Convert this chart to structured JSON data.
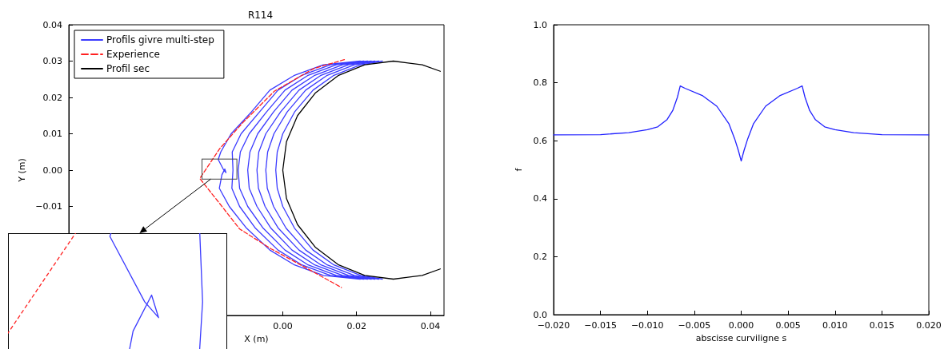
{
  "chart_data": [
    {
      "type": "line",
      "title": "R114",
      "xlabel": "X (m)",
      "ylabel": "Y (m)",
      "xlim": [
        -0.058,
        0.0437
      ],
      "ylim": [
        -0.04,
        0.04
      ],
      "xticks": [
        {
          "value": 0,
          "label": "0.00"
        },
        {
          "value": 0.02,
          "label": "0.02"
        },
        {
          "value": 0.04,
          "label": "0.04"
        }
      ],
      "yticks": [
        {
          "value": -0.01,
          "label": "−0.01"
        },
        {
          "value": 0,
          "label": "0.00"
        },
        {
          "value": 0.01,
          "label": "0.01"
        },
        {
          "value": 0.02,
          "label": "0.02"
        },
        {
          "value": 0.03,
          "label": "0.03"
        },
        {
          "value": 0.04,
          "label": "0.04"
        }
      ],
      "legend": "top left",
      "series": [
        {
          "name": "Profils givre multi-step",
          "color": "#3a3aff",
          "x": [
            0.021,
            0.011,
            0.003,
            -0.0035,
            -0.0085,
            -0.014,
            -0.0168,
            -0.0175,
            -0.016,
            -0.0154,
            -0.0157,
            -0.0165,
            -0.0172,
            -0.0145,
            -0.0098,
            -0.0035,
            0.003,
            0.011,
            0.021
          ],
          "values": [
            0.03,
            0.029,
            0.026,
            0.022,
            0.016,
            0.01,
            0.005,
            0.0029,
            0,
            -0.0007,
            0.0003,
            -0.0013,
            -0.005,
            -0.01,
            -0.016,
            -0.022,
            -0.026,
            -0.029,
            -0.03
          ]
        },
        {
          "color": "#3a3aff",
          "x": [
            0.022,
            0.0129,
            0.005,
            -0.0013,
            -0.0063,
            -0.0113,
            -0.0137,
            -0.0135,
            -0.0138,
            -0.0117,
            -0.0074,
            -0.0013,
            0.005,
            0.0129,
            0.022
          ],
          "values": [
            0.03,
            0.029,
            0.026,
            0.022,
            0.016,
            0.01,
            0.005,
            0,
            -0.005,
            -0.01,
            -0.016,
            -0.022,
            -0.026,
            -0.029,
            -0.03
          ]
        },
        {
          "color": "#3a3aff",
          "x": [
            0.023,
            0.0145,
            0.0067,
            0.0006,
            -0.0044,
            -0.0091,
            -0.0115,
            -0.0121,
            -0.0117,
            -0.0095,
            -0.0053,
            0.0006,
            0.0067,
            0.0145,
            0.023
          ],
          "values": [
            0.03,
            0.029,
            0.026,
            0.022,
            0.016,
            0.01,
            0.005,
            0,
            -0.005,
            -0.01,
            -0.016,
            -0.022,
            -0.026,
            -0.029,
            -0.03
          ]
        },
        {
          "color": "#3a3aff",
          "x": [
            0.024,
            0.0162,
            0.0085,
            0.0025,
            -0.0025,
            -0.0068,
            -0.0089,
            -0.0095,
            -0.0091,
            -0.007,
            -0.0032,
            0.0025,
            0.0085,
            0.0162,
            0.024
          ],
          "values": [
            0.03,
            0.029,
            0.026,
            0.022,
            0.016,
            0.01,
            0.005,
            0,
            -0.005,
            -0.01,
            -0.016,
            -0.022,
            -0.026,
            -0.029,
            -0.03
          ]
        },
        {
          "color": "#3a3aff",
          "x": [
            0.025,
            0.0178,
            0.0102,
            0.0044,
            -0.0006,
            -0.0046,
            -0.0065,
            -0.007,
            -0.0066,
            -0.0048,
            -0.0012,
            0.0044,
            0.0102,
            0.0178,
            0.025
          ],
          "values": [
            0.03,
            0.029,
            0.026,
            0.022,
            0.016,
            0.01,
            0.005,
            0,
            -0.005,
            -0.01,
            -0.016,
            -0.022,
            -0.026,
            -0.029,
            -0.03
          ]
        },
        {
          "color": "#3a3aff",
          "x": [
            0.026,
            0.0194,
            0.0119,
            0.0062,
            0.0012,
            -0.0024,
            -0.0041,
            -0.0046,
            -0.0042,
            -0.0025,
            0.0009,
            0.0062,
            0.0119,
            0.0194,
            0.026
          ],
          "values": [
            0.03,
            0.029,
            0.026,
            0.022,
            0.016,
            0.01,
            0.005,
            0,
            -0.005,
            -0.01,
            -0.016,
            -0.022,
            -0.026,
            -0.029,
            -0.03
          ]
        },
        {
          "color": "#3a3aff",
          "x": [
            0.027,
            0.0211,
            0.0137,
            0.0082,
            0.0032,
            0,
            -0.0015,
            -0.0019,
            -0.0015,
            0,
            0.0032,
            0.0082,
            0.0137,
            0.0211,
            0.027
          ],
          "values": [
            0.03,
            0.029,
            0.026,
            0.022,
            0.016,
            0.01,
            0.005,
            0,
            -0.005,
            -0.01,
            -0.016,
            -0.022,
            -0.026,
            -0.029,
            -0.03
          ]
        },
        {
          "name": "Experience",
          "color": "#ff2020",
          "line_style": "dashed",
          "x": [
            0.0167,
            0.0085,
            -0.0023,
            -0.0109,
            -0.0171,
            -0.0225,
            -0.0178,
            -0.0117,
            -0.0031,
            0.0054,
            0.0159
          ],
          "values": [
            0.0304,
            0.028,
            0.0217,
            0.013,
            0.0059,
            -0.0023,
            -0.0083,
            -0.0162,
            -0.0217,
            -0.0264,
            -0.0323
          ]
        },
        {
          "name": "Profil sec",
          "color": "#000000",
          "x": [
            0.0427,
            0.0378,
            0.03,
            0.0222,
            0.015,
            0.0088,
            0.004,
            0.001,
            0,
            0.001,
            0.004,
            0.0088,
            0.015,
            0.0222,
            0.03,
            0.0378,
            0.0427
          ],
          "values": [
            0.0272,
            0.029,
            0.03,
            0.029,
            0.026,
            0.0212,
            0.015,
            0.0078,
            0,
            -0.0078,
            -0.015,
            -0.0212,
            -0.026,
            -0.029,
            -0.03,
            -0.029,
            -0.0272
          ]
        }
      ]
    },
    {
      "type": "line",
      "xlabel": "abscisse curviligne s",
      "ylabel": "f",
      "xlim": [
        -0.02,
        0.02
      ],
      "ylim": [
        0,
        1
      ],
      "xticks": [
        {
          "value": -0.02,
          "label": "−0.020"
        },
        {
          "value": -0.015,
          "label": "−0.015"
        },
        {
          "value": -0.01,
          "label": "−0.010"
        },
        {
          "value": -0.005,
          "label": "−0.005"
        },
        {
          "value": 0,
          "label": "0.000"
        },
        {
          "value": 0.005,
          "label": "0.005"
        },
        {
          "value": 0.01,
          "label": "0.010"
        },
        {
          "value": 0.015,
          "label": "0.015"
        },
        {
          "value": 0.02,
          "label": "0.020"
        }
      ],
      "yticks": [
        {
          "value": 0,
          "label": "0.0"
        },
        0.2,
        0.4,
        0.6,
        0.8,
        {
          "value": 1,
          "label": "1.0"
        }
      ],
      "series": [
        {
          "color": "#2020ff",
          "x": [
            -0.02,
            -0.015,
            -0.012,
            -0.01,
            -0.0089,
            -0.0079,
            -0.0073,
            -0.0068,
            -0.0065,
            -0.006,
            -0.0041,
            -0.0026,
            -0.0013,
            -0.0007,
            -0.0003,
            0,
            0.0003,
            0.0007,
            0.0013,
            0.0026,
            0.0041,
            0.006,
            0.0065,
            0.0068,
            0.0073,
            0.0079,
            0.0089,
            0.01,
            0.012,
            0.015,
            0.02
          ],
          "values": [
            0.62,
            0.621,
            0.628,
            0.638,
            0.648,
            0.673,
            0.704,
            0.75,
            0.789,
            0.781,
            0.755,
            0.719,
            0.658,
            0.607,
            0.566,
            0.53,
            0.566,
            0.607,
            0.658,
            0.719,
            0.755,
            0.781,
            0.789,
            0.75,
            0.704,
            0.673,
            0.648,
            0.638,
            0.628,
            0.621,
            0.62
          ]
        }
      ]
    }
  ]
}
